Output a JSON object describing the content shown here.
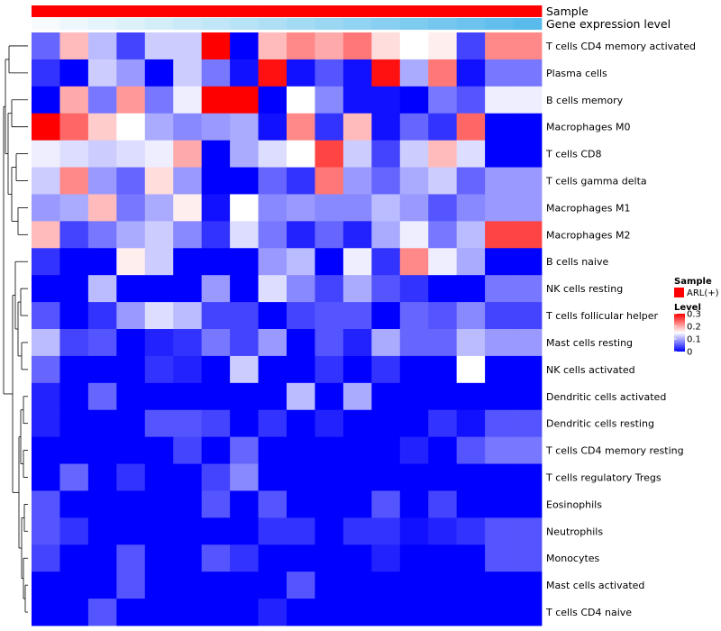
{
  "chart_data": {
    "type": "heatmap",
    "title": "",
    "color_scale": {
      "low": "#0000FF",
      "mid": "#FFFFFF",
      "high": "#FF0000",
      "min": 0,
      "max": 0.3,
      "midpoint": 0.15
    },
    "annotations": [
      {
        "name": "Sample",
        "type": "categorical",
        "colors": [
          "#FF0000",
          "#FF0000",
          "#FF0000",
          "#FF0000",
          "#FF0000",
          "#FF0000",
          "#FF0000",
          "#FF0000",
          "#FF0000",
          "#FF0000",
          "#FF0000",
          "#FF0000",
          "#FF0000",
          "#FF0000",
          "#FF0000",
          "#FF0000",
          "#FF0000",
          "#FF0000"
        ]
      },
      {
        "name": "Gene expression level",
        "type": "gradient",
        "colors": [
          "#F7FBFE",
          "#EEF7FC",
          "#E6F4FB",
          "#DDF1FA",
          "#D3EDF9",
          "#CAEAF8",
          "#C1E6F7",
          "#B7E3F6",
          "#AEDFF5",
          "#A4DBF4",
          "#9BD7F3",
          "#91D3F2",
          "#88CFF1",
          "#7ECBF0",
          "#75C7EF",
          "#6BC3EE",
          "#62BFED",
          "#59BBEC"
        ]
      }
    ],
    "rows": [
      "T cells CD4 memory activated",
      "Plasma cells",
      "B cells memory",
      "Macrophages M0",
      "T cells CD8",
      "T cells gamma delta",
      "Macrophages M1",
      "Macrophages M2",
      "B cells naive",
      "NK cells resting",
      "T cells follicular helper",
      "Mast cells resting",
      "NK cells activated",
      "Dendritic cells activated",
      "Dendritic cells resting",
      "T cells CD4 memory resting",
      "T cells regulatory  Tregs",
      "Eosinophils",
      "Neutrophils",
      "Monocytes",
      "Mast cells activated",
      "T cells CD4 naive"
    ],
    "n_columns": 18,
    "values": [
      [
        0.06,
        0.19,
        0.11,
        0.04,
        0.12,
        0.12,
        0.3,
        0.0,
        0.19,
        0.22,
        0.2,
        0.23,
        0.17,
        0.15,
        0.16,
        0.04,
        0.22,
        0.22
      ],
      [
        0.03,
        0.0,
        0.12,
        0.09,
        0.0,
        0.12,
        0.07,
        0.01,
        0.29,
        0.01,
        0.05,
        0.01,
        0.29,
        0.1,
        0.23,
        0.01,
        0.07,
        0.07
      ],
      [
        0.0,
        0.2,
        0.07,
        0.21,
        0.07,
        0.14,
        0.3,
        0.3,
        0.0,
        0.15,
        0.08,
        0.01,
        0.01,
        0.0,
        0.07,
        0.05,
        0.14,
        0.14
      ],
      [
        0.3,
        0.24,
        0.18,
        0.15,
        0.1,
        0.08,
        0.09,
        0.1,
        0.01,
        0.22,
        0.03,
        0.19,
        0.01,
        0.06,
        0.03,
        0.24,
        0.0,
        0.0
      ],
      [
        0.14,
        0.13,
        0.12,
        0.13,
        0.14,
        0.2,
        0.0,
        0.1,
        0.13,
        0.15,
        0.26,
        0.12,
        0.04,
        0.12,
        0.19,
        0.13,
        0.0,
        0.0
      ],
      [
        0.12,
        0.22,
        0.09,
        0.06,
        0.17,
        0.09,
        0.0,
        0.0,
        0.06,
        0.03,
        0.23,
        0.09,
        0.06,
        0.1,
        0.12,
        0.06,
        0.09,
        0.09
      ],
      [
        0.09,
        0.1,
        0.19,
        0.07,
        0.1,
        0.16,
        0.01,
        0.15,
        0.08,
        0.09,
        0.08,
        0.08,
        0.11,
        0.09,
        0.05,
        0.08,
        0.09,
        0.09
      ],
      [
        0.19,
        0.04,
        0.07,
        0.1,
        0.12,
        0.08,
        0.03,
        0.13,
        0.07,
        0.02,
        0.06,
        0.02,
        0.1,
        0.14,
        0.07,
        0.11,
        0.26,
        0.26
      ],
      [
        0.03,
        0.0,
        0.0,
        0.16,
        0.12,
        0.0,
        0.0,
        0.0,
        0.09,
        0.11,
        0.0,
        0.14,
        0.03,
        0.22,
        0.14,
        0.1,
        0.0,
        0.0
      ],
      [
        0.0,
        0.0,
        0.11,
        0.0,
        0.0,
        0.0,
        0.09,
        0.0,
        0.13,
        0.08,
        0.04,
        0.1,
        0.05,
        0.03,
        0.0,
        0.0,
        0.07,
        0.07
      ],
      [
        0.05,
        0.0,
        0.03,
        0.09,
        0.13,
        0.11,
        0.04,
        0.04,
        0.0,
        0.04,
        0.05,
        0.05,
        0.0,
        0.06,
        0.05,
        0.08,
        0.04,
        0.04
      ],
      [
        0.11,
        0.04,
        0.05,
        0.0,
        0.02,
        0.03,
        0.07,
        0.04,
        0.09,
        0.0,
        0.05,
        0.02,
        0.1,
        0.06,
        0.06,
        0.11,
        0.09,
        0.09
      ],
      [
        0.06,
        0.0,
        0.0,
        0.0,
        0.03,
        0.02,
        0.0,
        0.12,
        0.0,
        0.0,
        0.03,
        0.0,
        0.03,
        0.0,
        0.0,
        0.15,
        0.0,
        0.0
      ],
      [
        0.02,
        0.0,
        0.06,
        0.0,
        0.0,
        0.0,
        0.0,
        0.0,
        0.0,
        0.11,
        0.0,
        0.1,
        0.0,
        0.0,
        0.0,
        0.0,
        0.0,
        0.0
      ],
      [
        0.02,
        0.0,
        0.0,
        0.0,
        0.05,
        0.05,
        0.04,
        0.0,
        0.03,
        0.0,
        0.02,
        0.0,
        0.0,
        0.0,
        0.03,
        0.01,
        0.05,
        0.05
      ],
      [
        0.0,
        0.0,
        0.0,
        0.0,
        0.0,
        0.04,
        0.0,
        0.06,
        0.0,
        0.0,
        0.0,
        0.0,
        0.0,
        0.02,
        0.0,
        0.05,
        0.07,
        0.07
      ],
      [
        0.0,
        0.06,
        0.0,
        0.03,
        0.0,
        0.0,
        0.04,
        0.08,
        0.0,
        0.0,
        0.0,
        0.0,
        0.0,
        0.0,
        0.0,
        0.0,
        0.0,
        0.0
      ],
      [
        0.05,
        0.0,
        0.0,
        0.0,
        0.0,
        0.0,
        0.05,
        0.0,
        0.05,
        0.0,
        0.0,
        0.0,
        0.05,
        0.0,
        0.04,
        0.0,
        0.0,
        0.0
      ],
      [
        0.05,
        0.03,
        0.0,
        0.0,
        0.0,
        0.0,
        0.0,
        0.0,
        0.03,
        0.03,
        0.0,
        0.03,
        0.03,
        0.01,
        0.02,
        0.03,
        0.05,
        0.05
      ],
      [
        0.04,
        0.0,
        0.0,
        0.05,
        0.0,
        0.0,
        0.05,
        0.03,
        0.0,
        0.0,
        0.0,
        0.0,
        0.02,
        0.0,
        0.0,
        0.0,
        0.05,
        0.05
      ],
      [
        0.0,
        0.0,
        0.0,
        0.05,
        0.0,
        0.0,
        0.0,
        0.0,
        0.0,
        0.05,
        0.0,
        0.0,
        0.0,
        0.0,
        0.0,
        0.0,
        0.0,
        0.0
      ],
      [
        0.0,
        0.0,
        0.05,
        0.0,
        0.0,
        0.0,
        0.0,
        0.0,
        0.02,
        0.0,
        0.0,
        0.0,
        0.0,
        0.0,
        0.0,
        0.0,
        0.0,
        0.0
      ]
    ],
    "legend": {
      "sample": {
        "title": "Sample",
        "entries": [
          {
            "label": "ARL(+)",
            "color": "#FF0000"
          }
        ]
      },
      "level": {
        "title": "Level",
        "ticks": [
          0.3,
          0.2,
          0.1,
          0
        ]
      }
    },
    "dendrogram": {
      "side": "left",
      "cluster_rows": true,
      "cluster_columns": false
    }
  }
}
